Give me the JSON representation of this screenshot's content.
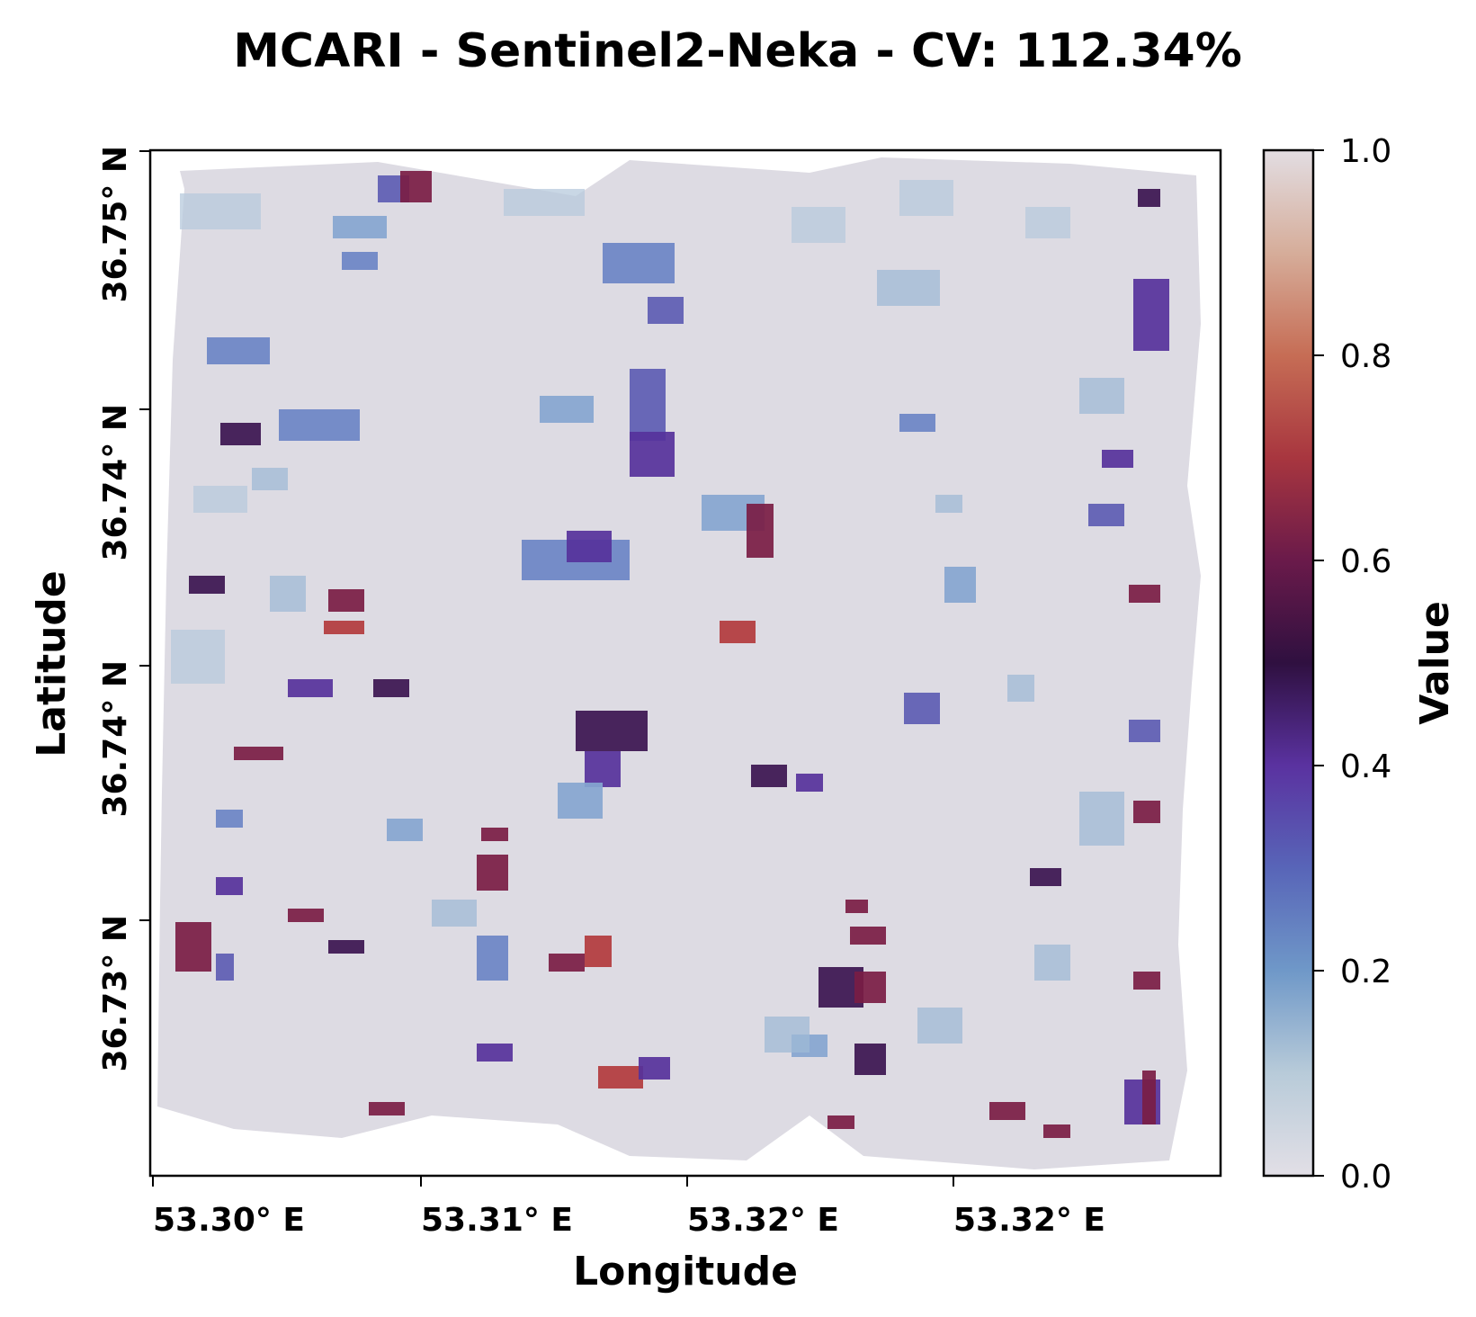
{
  "chart_data": {
    "type": "heatmap",
    "title": "MCARI - Sentinel2-Neka - CV: 112.34%",
    "xlabel": "Longitude",
    "ylabel": "Latitude",
    "x_ticks": [
      "53.30° E",
      "53.31° E",
      "53.32° E",
      "53.32° E"
    ],
    "y_ticks": [
      "36.75° N",
      "36.74° N",
      "36.74° N",
      "36.73° N"
    ],
    "colorbar": {
      "label": "Value",
      "range": [
        0.0,
        1.0
      ],
      "ticks": [
        "0.0",
        "0.2",
        "0.4",
        "0.6",
        "0.8",
        "1.0"
      ],
      "colormap": "twilight_shifted"
    },
    "colors": {
      "background_low": "#dcdae3",
      "low_blue": "#5f86c0",
      "mid_purple": "#5b2e9a",
      "dark": "#2a0f2c",
      "high_red": "#c04a3c",
      "high_tan": "#d8b7a4"
    },
    "grid": false,
    "notes": "Field parcels: mostly near 0.0-0.2 (pale lavender-grey), scattered patches 0.2-0.6 (blue to purple to dark red)."
  }
}
